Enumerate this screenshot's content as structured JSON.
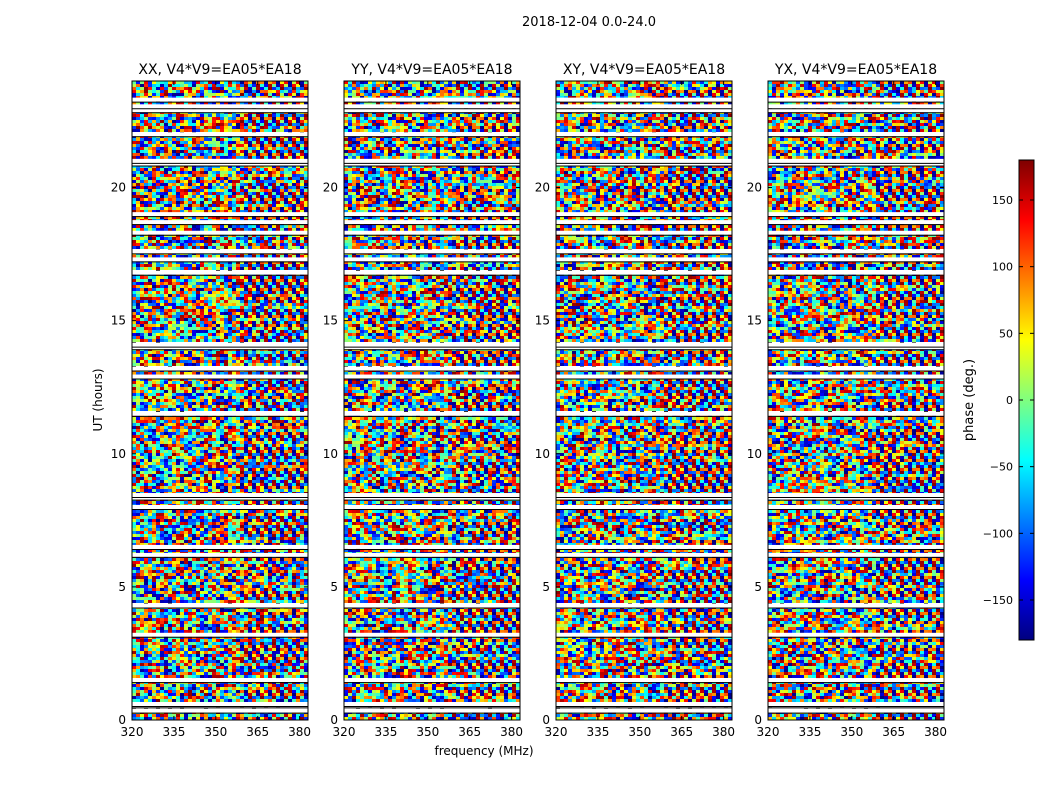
{
  "suptitle": "2018-12-04 0.0-24.0",
  "chart_data": [
    {
      "type": "heatmap",
      "title": "XX, V4*V9=EA05*EA18",
      "xlabel": "",
      "ylabel": "UT (hours)",
      "xlim": [
        320,
        383
      ],
      "ylim": [
        0,
        24
      ],
      "xticks": [
        "320",
        "335",
        "350",
        "365",
        "380"
      ],
      "yticks": [
        "0",
        "5",
        "10",
        "15",
        "20"
      ],
      "value": "phase (deg.)"
    },
    {
      "type": "heatmap",
      "title": "YY, V4*V9=EA05*EA18",
      "xlabel": "frequency (MHz)",
      "ylabel": "",
      "xlim": [
        320,
        383
      ],
      "ylim": [
        0,
        24
      ],
      "xticks": [
        "320",
        "335",
        "350",
        "365",
        "380"
      ],
      "yticks": [
        "0",
        "5",
        "10",
        "15",
        "20"
      ],
      "value": "phase (deg.)"
    },
    {
      "type": "heatmap",
      "title": "XY, V4*V9=EA05*EA18",
      "xlabel": "",
      "ylabel": "",
      "xlim": [
        320,
        383
      ],
      "ylim": [
        0,
        24
      ],
      "xticks": [
        "320",
        "335",
        "350",
        "365",
        "380"
      ],
      "yticks": [
        "0",
        "5",
        "10",
        "15",
        "20"
      ],
      "value": "phase (deg.)"
    },
    {
      "type": "heatmap",
      "title": "YX, V4*V9=EA05*EA18",
      "xlabel": "",
      "ylabel": "",
      "xlim": [
        320,
        383
      ],
      "ylim": [
        0,
        24
      ],
      "xticks": [
        "320",
        "335",
        "350",
        "365",
        "380"
      ],
      "yticks": [
        "0",
        "5",
        "10",
        "15",
        "20"
      ],
      "value": "phase (deg.)"
    }
  ],
  "colorbar": {
    "label": "phase (deg.)",
    "range": [
      -180,
      180
    ],
    "ticks": [
      "150",
      "100",
      "50",
      "0",
      "−50",
      "−100",
      "−150"
    ],
    "colormap": "jet"
  },
  "flagged_ut_hours": [
    0.35,
    0.55,
    0.6,
    1.5,
    3.2,
    4.3,
    6.2,
    6.5,
    8.0,
    8.35,
    8.45,
    11.5,
    12.9,
    13.2,
    14.0,
    14.1,
    16.8,
    17.3,
    17.6,
    18.3,
    18.7,
    19.0,
    20.9,
    21.0,
    22.0,
    22.9,
    23.05,
    23.3
  ]
}
